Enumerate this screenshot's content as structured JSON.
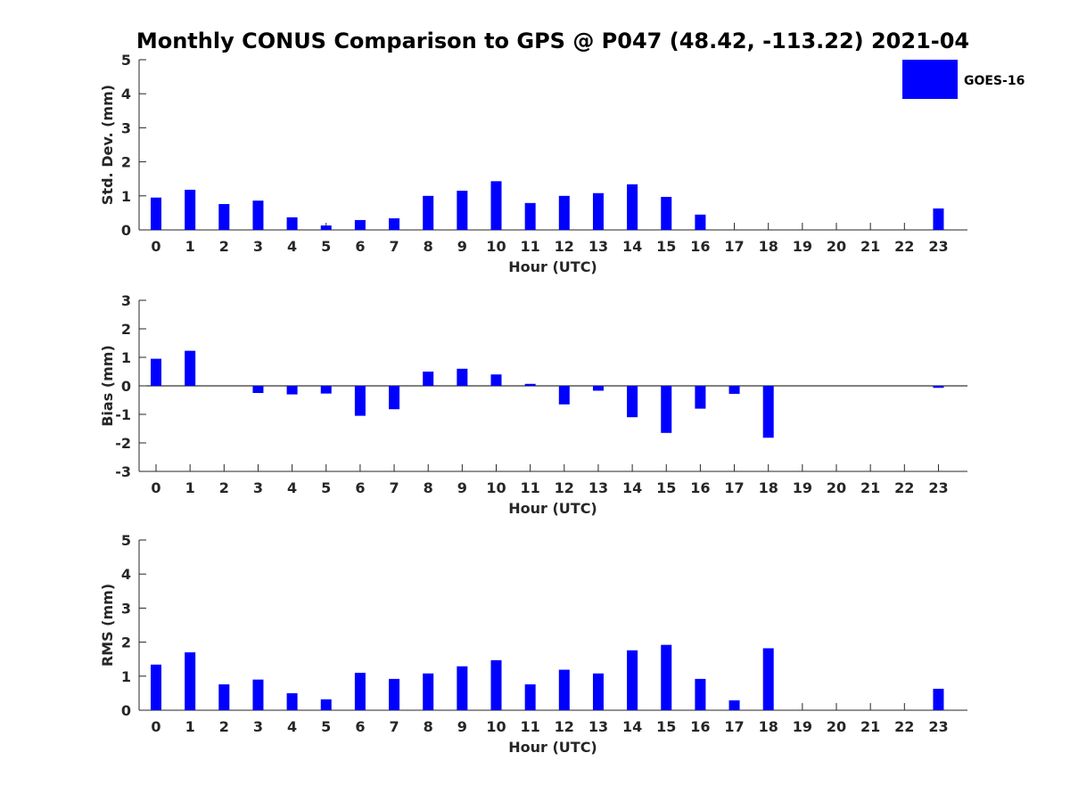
{
  "title": "Monthly CONUS Comparison to GPS @ P047 (48.42, -113.22) 2021-04",
  "legend": {
    "label": "GOES-16",
    "color": "#0000ff"
  },
  "chart_data": [
    {
      "type": "bar",
      "name": "std-dev",
      "xlabel": "Hour (UTC)",
      "ylabel": "Std. Dev. (mm)",
      "ylim": [
        0,
        5
      ],
      "yticks": [
        "0",
        "1",
        "2",
        "3",
        "4",
        "5"
      ],
      "categories": [
        "0",
        "1",
        "2",
        "3",
        "4",
        "5",
        "6",
        "7",
        "8",
        "9",
        "10",
        "11",
        "12",
        "13",
        "14",
        "15",
        "16",
        "17",
        "18",
        "19",
        "20",
        "21",
        "22",
        "23"
      ],
      "series": [
        {
          "name": "GOES-16",
          "values": [
            0.95,
            1.18,
            0.76,
            0.86,
            0.37,
            0.13,
            0.29,
            0.34,
            1.0,
            1.15,
            1.43,
            0.79,
            1.0,
            1.08,
            1.34,
            0.97,
            0.45,
            0,
            0,
            0,
            0,
            0,
            0,
            0.63
          ]
        }
      ]
    },
    {
      "type": "bar",
      "name": "bias",
      "xlabel": "Hour (UTC)",
      "ylabel": "Bias (mm)",
      "ylim": [
        -3,
        3
      ],
      "yticks": [
        "-3",
        "-2",
        "-1",
        "0",
        "1",
        "2",
        "3"
      ],
      "categories": [
        "0",
        "1",
        "2",
        "3",
        "4",
        "5",
        "6",
        "7",
        "8",
        "9",
        "10",
        "11",
        "12",
        "13",
        "14",
        "15",
        "16",
        "17",
        "18",
        "19",
        "20",
        "21",
        "22",
        "23"
      ],
      "series": [
        {
          "name": "GOES-16",
          "values": [
            0.95,
            1.23,
            0,
            -0.25,
            -0.3,
            -0.27,
            -1.05,
            -0.82,
            0.5,
            0.6,
            0.4,
            0.07,
            -0.65,
            -0.17,
            -1.1,
            -1.65,
            -0.8,
            -0.28,
            -1.82,
            0,
            0,
            0,
            0,
            -0.07
          ]
        }
      ]
    },
    {
      "type": "bar",
      "name": "rms",
      "xlabel": "Hour (UTC)",
      "ylabel": "RMS (mm)",
      "ylim": [
        0,
        5
      ],
      "yticks": [
        "0",
        "1",
        "2",
        "3",
        "4",
        "5"
      ],
      "categories": [
        "0",
        "1",
        "2",
        "3",
        "4",
        "5",
        "6",
        "7",
        "8",
        "9",
        "10",
        "11",
        "12",
        "13",
        "14",
        "15",
        "16",
        "17",
        "18",
        "19",
        "20",
        "21",
        "22",
        "23"
      ],
      "series": [
        {
          "name": "GOES-16",
          "values": [
            1.34,
            1.7,
            0.76,
            0.9,
            0.5,
            0.32,
            1.1,
            0.92,
            1.08,
            1.29,
            1.47,
            0.76,
            1.19,
            1.08,
            1.76,
            1.92,
            0.92,
            0.29,
            1.82,
            0,
            0,
            0,
            0,
            0.63
          ]
        }
      ]
    }
  ]
}
